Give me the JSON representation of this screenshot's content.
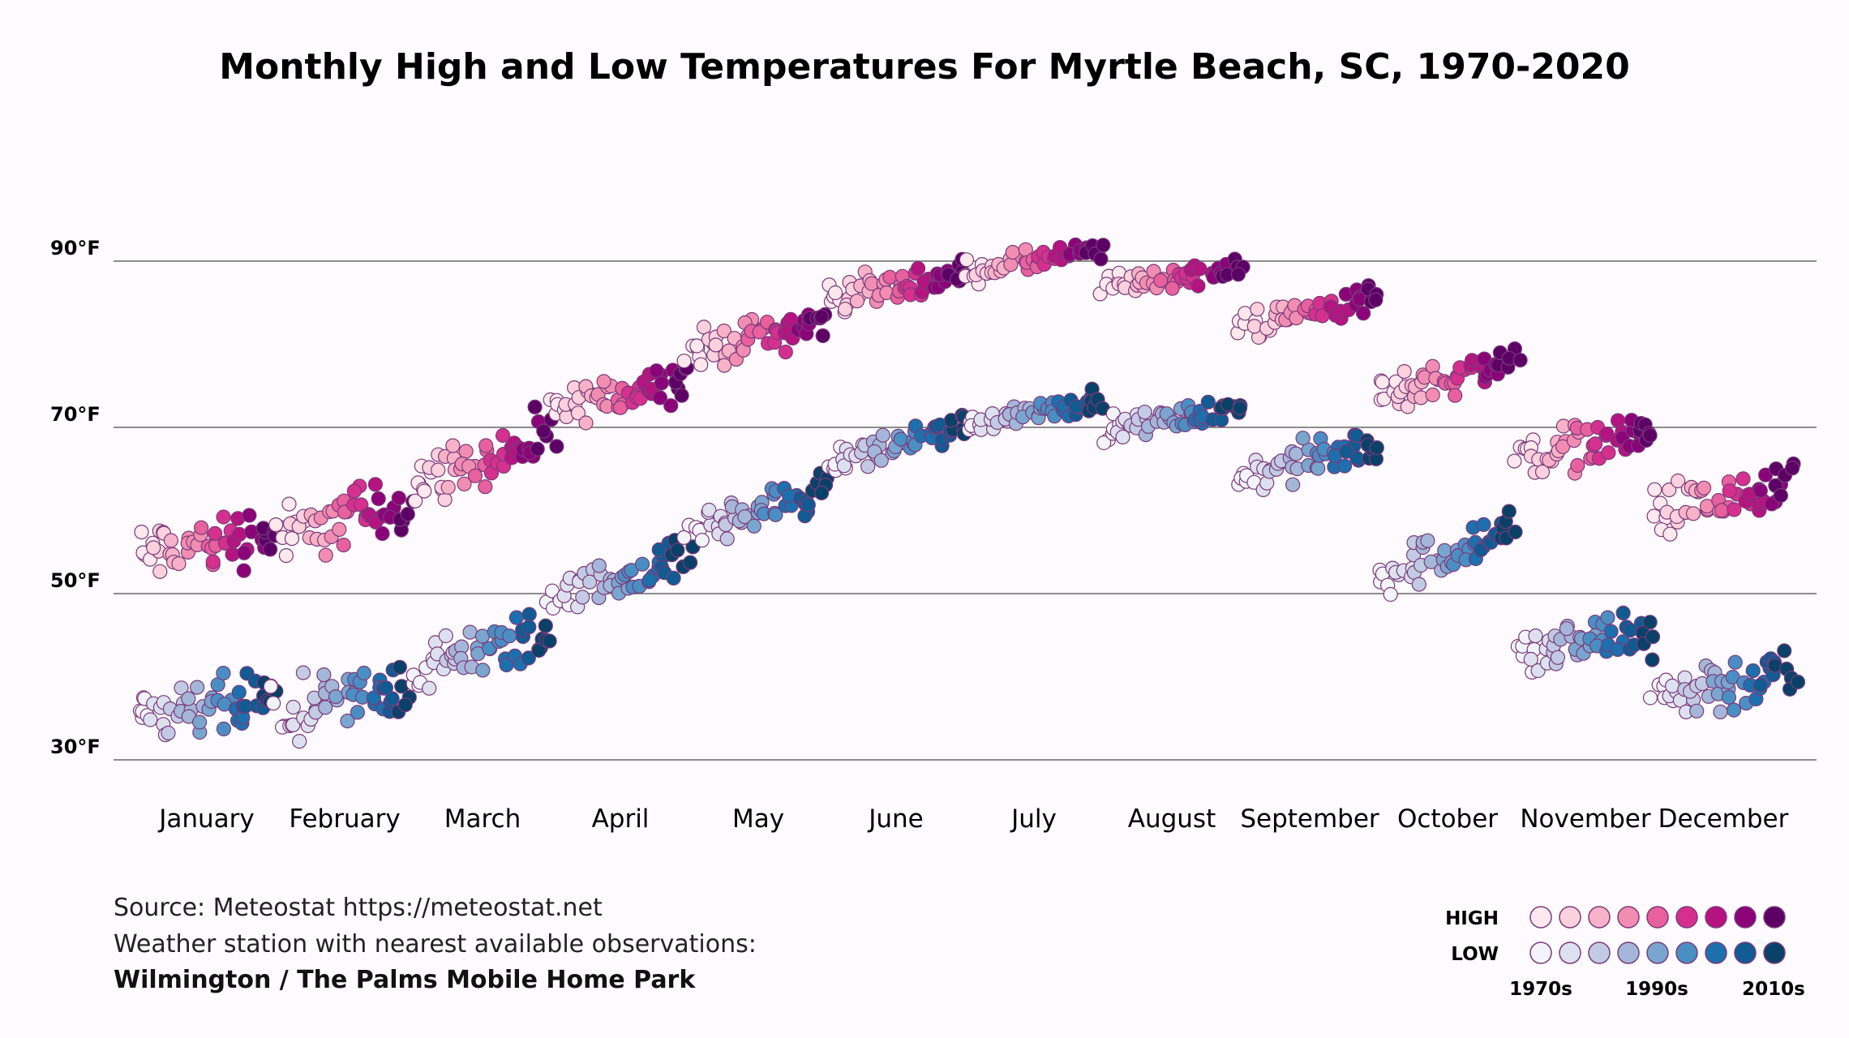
{
  "source": {
    "line1": "Source: Meteostat https://meteostat.net",
    "line2": "Weather station with nearest available observations:",
    "line3": "Wilmington / The Palms Mobile Home Park"
  },
  "legend": {
    "high_label": "HIGH",
    "low_label": "LOW",
    "decade_labels": [
      "1970s",
      "1990s",
      "2010s"
    ],
    "high_colors": [
      "#fde8ee",
      "#fad1dc",
      "#f7b2c7",
      "#f28db2",
      "#e8609d",
      "#d6308e",
      "#b5137f",
      "#8a0478",
      "#5c0066"
    ],
    "low_colors": [
      "#f3f4fa",
      "#dde1ef",
      "#c2cbe3",
      "#a4b7d8",
      "#78a6cf",
      "#4a8fc4",
      "#1c70ad",
      "#0f5b92",
      "#0a4168"
    ],
    "outline_color": "#7a3a7a"
  },
  "chart_data": {
    "type": "scatter",
    "title": "Monthly High and Low Temperatures For Myrtle Beach, SC, 1970-2020",
    "xlabel": "",
    "ylabel": "",
    "categories": [
      "January",
      "February",
      "March",
      "April",
      "May",
      "June",
      "July",
      "August",
      "September",
      "October",
      "November",
      "December"
    ],
    "yticks": [
      "90°F",
      "70°F",
      "50°F",
      "30°F"
    ],
    "ytick_values": [
      90,
      70,
      50,
      30
    ],
    "ylim": [
      25,
      97
    ],
    "years": [
      1970,
      2020
    ],
    "series": [
      {
        "name": "High",
        "values": [
          56,
          59,
          66,
          74,
          81,
          87,
          90,
          88,
          84,
          76,
          68,
          61
        ],
        "trend": [
          0.6,
          0.9,
          1.0,
          0.9,
          0.8,
          0.6,
          0.5,
          0.4,
          0.7,
          0.9,
          0.6,
          0.5
        ],
        "spread": [
          4,
          4,
          3.5,
          2.5,
          2.5,
          2,
          1.5,
          1.5,
          2,
          2.5,
          3,
          3.5
        ]
      },
      {
        "name": "Low",
        "values": [
          36,
          37,
          43,
          52,
          60,
          68,
          72,
          71,
          66,
          55,
          44,
          39
        ],
        "trend": [
          0.5,
          0.8,
          0.9,
          1.0,
          1.0,
          0.9,
          0.6,
          0.5,
          0.8,
          1.2,
          0.6,
          0.5
        ],
        "spread": [
          4,
          4,
          3.5,
          2.5,
          2.5,
          2,
          1.5,
          1.5,
          2.5,
          3,
          3.5,
          4
        ]
      }
    ]
  }
}
